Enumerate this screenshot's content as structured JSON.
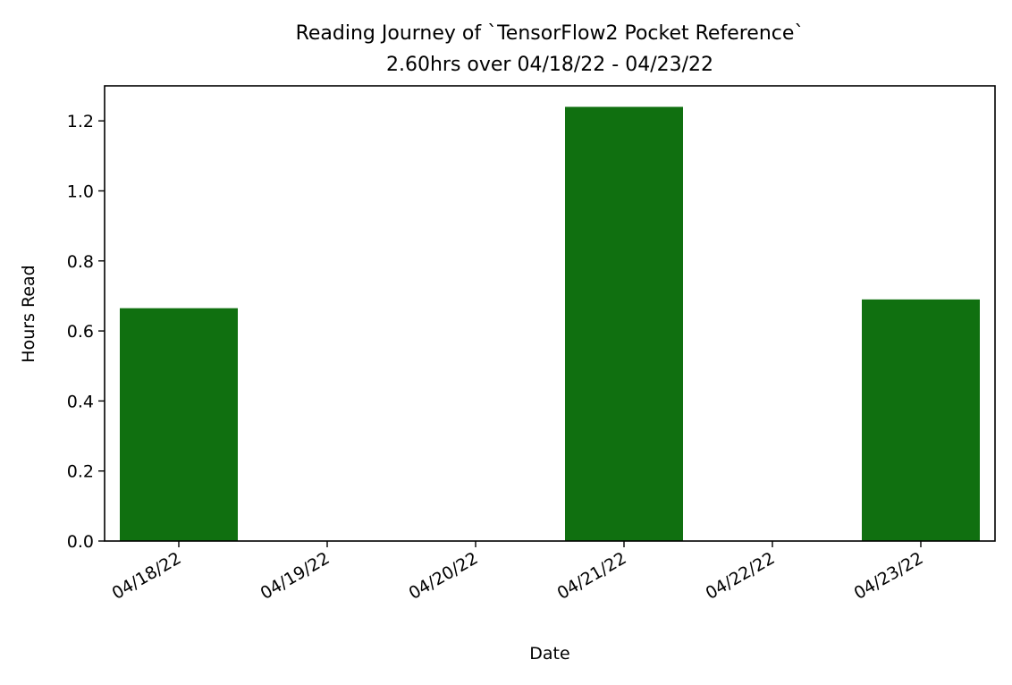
{
  "chart_data": {
    "type": "bar",
    "title": "Reading Journey of `TensorFlow2 Pocket Reference`",
    "subtitle": "2.60hrs over 04/18/22 - 04/23/22",
    "xlabel": "Date",
    "ylabel": "Hours Read",
    "categories": [
      "04/18/22",
      "04/19/22",
      "04/20/22",
      "04/21/22",
      "04/22/22",
      "04/23/22"
    ],
    "values": [
      0.665,
      0,
      0,
      1.24,
      0,
      0.69
    ],
    "ylim": [
      0,
      1.3
    ],
    "yticks": [
      0.0,
      0.2,
      0.4,
      0.6,
      0.8,
      1.0,
      1.2
    ],
    "ytick_labels": [
      "0.0",
      "0.2",
      "0.4",
      "0.6",
      "0.8",
      "1.0",
      "1.2"
    ],
    "grid": false,
    "bar_color": "#107010"
  }
}
